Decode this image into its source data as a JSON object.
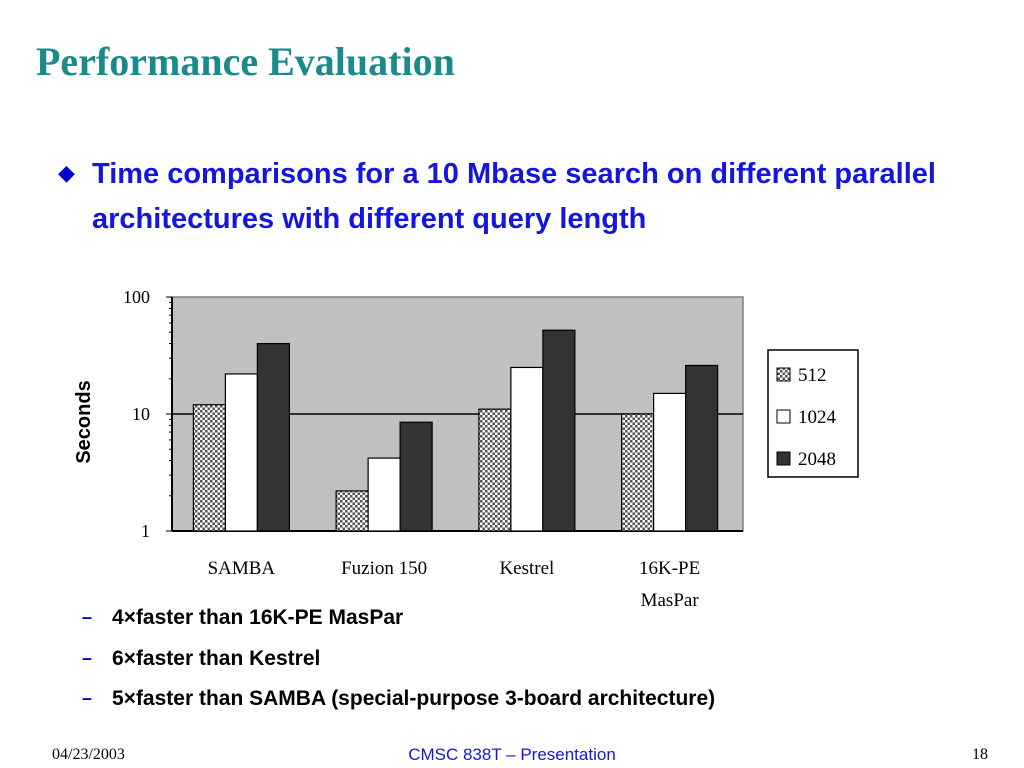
{
  "slide": {
    "title": "Performance Evaluation",
    "bullet": "Time comparisons for a 10 Mbase search on different parallel architectures with different query length",
    "sub_bullets": [
      "4×faster than 16K-PE MasPar",
      "6×faster than Kestrel",
      "5×faster than SAMBA (special-purpose 3-board architecture)"
    ]
  },
  "footer": {
    "date": "04/23/2003",
    "center": "CMSC 838T – Presentation",
    "page": "18"
  },
  "chart_data": {
    "type": "bar",
    "ylabel": "Seconds",
    "yscale": "log",
    "ylim": [
      1,
      100
    ],
    "yticks": [
      "1",
      "10",
      "100"
    ],
    "categories": [
      "SAMBA",
      "Fuzion 150",
      "Kestrel",
      "16K-PE MasPar"
    ],
    "series": [
      {
        "name": "512",
        "values": [
          12,
          2.2,
          11,
          10
        ],
        "color": "#ffffff",
        "pattern": "checker"
      },
      {
        "name": "1024",
        "values": [
          22,
          4.2,
          25,
          15
        ],
        "color": "#ffffff"
      },
      {
        "name": "2048",
        "values": [
          40,
          8.5,
          52,
          26
        ],
        "color": "#333333"
      }
    ],
    "plot_background": "#c0c0c0",
    "gridlines": [
      10
    ],
    "legend_position": "right"
  }
}
